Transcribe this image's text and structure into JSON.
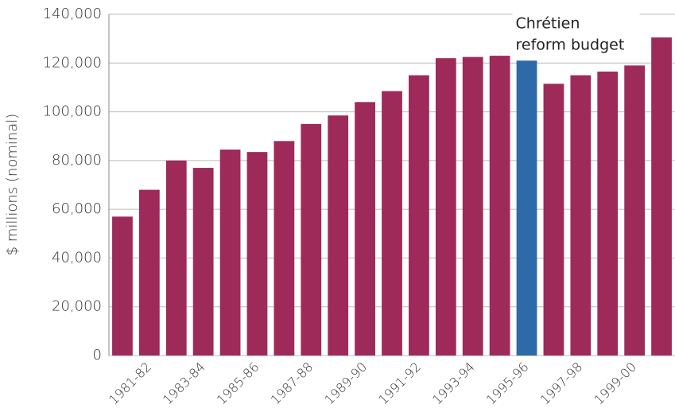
{
  "chart_data": {
    "type": "bar",
    "y_label": "$ millions (nominal)",
    "annotation": [
      "Chrétien",
      "reform budget"
    ],
    "categories": [
      null,
      "1981-82",
      null,
      "1983-84",
      null,
      "1985-86",
      null,
      "1987-88",
      null,
      "1989-90",
      null,
      "1991-92",
      null,
      "1993-94",
      null,
      "1995-96",
      null,
      "1997-98",
      null,
      "1999-00",
      null
    ],
    "values": [
      57000,
      68000,
      80000,
      77000,
      84500,
      83500,
      88000,
      95000,
      98500,
      104000,
      108500,
      115000,
      122000,
      122500,
      123000,
      121000,
      111500,
      115000,
      116500,
      119000,
      130500
    ],
    "colors": [
      "#9e2a5a",
      "#9e2a5a",
      "#9e2a5a",
      "#9e2a5a",
      "#9e2a5a",
      "#9e2a5a",
      "#9e2a5a",
      "#9e2a5a",
      "#9e2a5a",
      "#9e2a5a",
      "#9e2a5a",
      "#9e2a5a",
      "#9e2a5a",
      "#9e2a5a",
      "#9e2a5a",
      "#2e6aa8",
      "#9e2a5a",
      "#9e2a5a",
      "#9e2a5a",
      "#9e2a5a",
      "#9e2a5a"
    ],
    "ylim": [
      0,
      140000
    ],
    "yticks": [
      0,
      {
        "value": 20000,
        "label": "20,000"
      },
      {
        "value": 40000,
        "label": "40,000"
      },
      {
        "value": 60000,
        "label": "60,000"
      },
      {
        "value": 80000,
        "label": "80,000"
      },
      {
        "value": 100000,
        "label": "100,000"
      },
      {
        "value": 120000,
        "label": "120,000"
      },
      {
        "value": 140000,
        "label": "140,000"
      }
    ],
    "grid": true
  }
}
